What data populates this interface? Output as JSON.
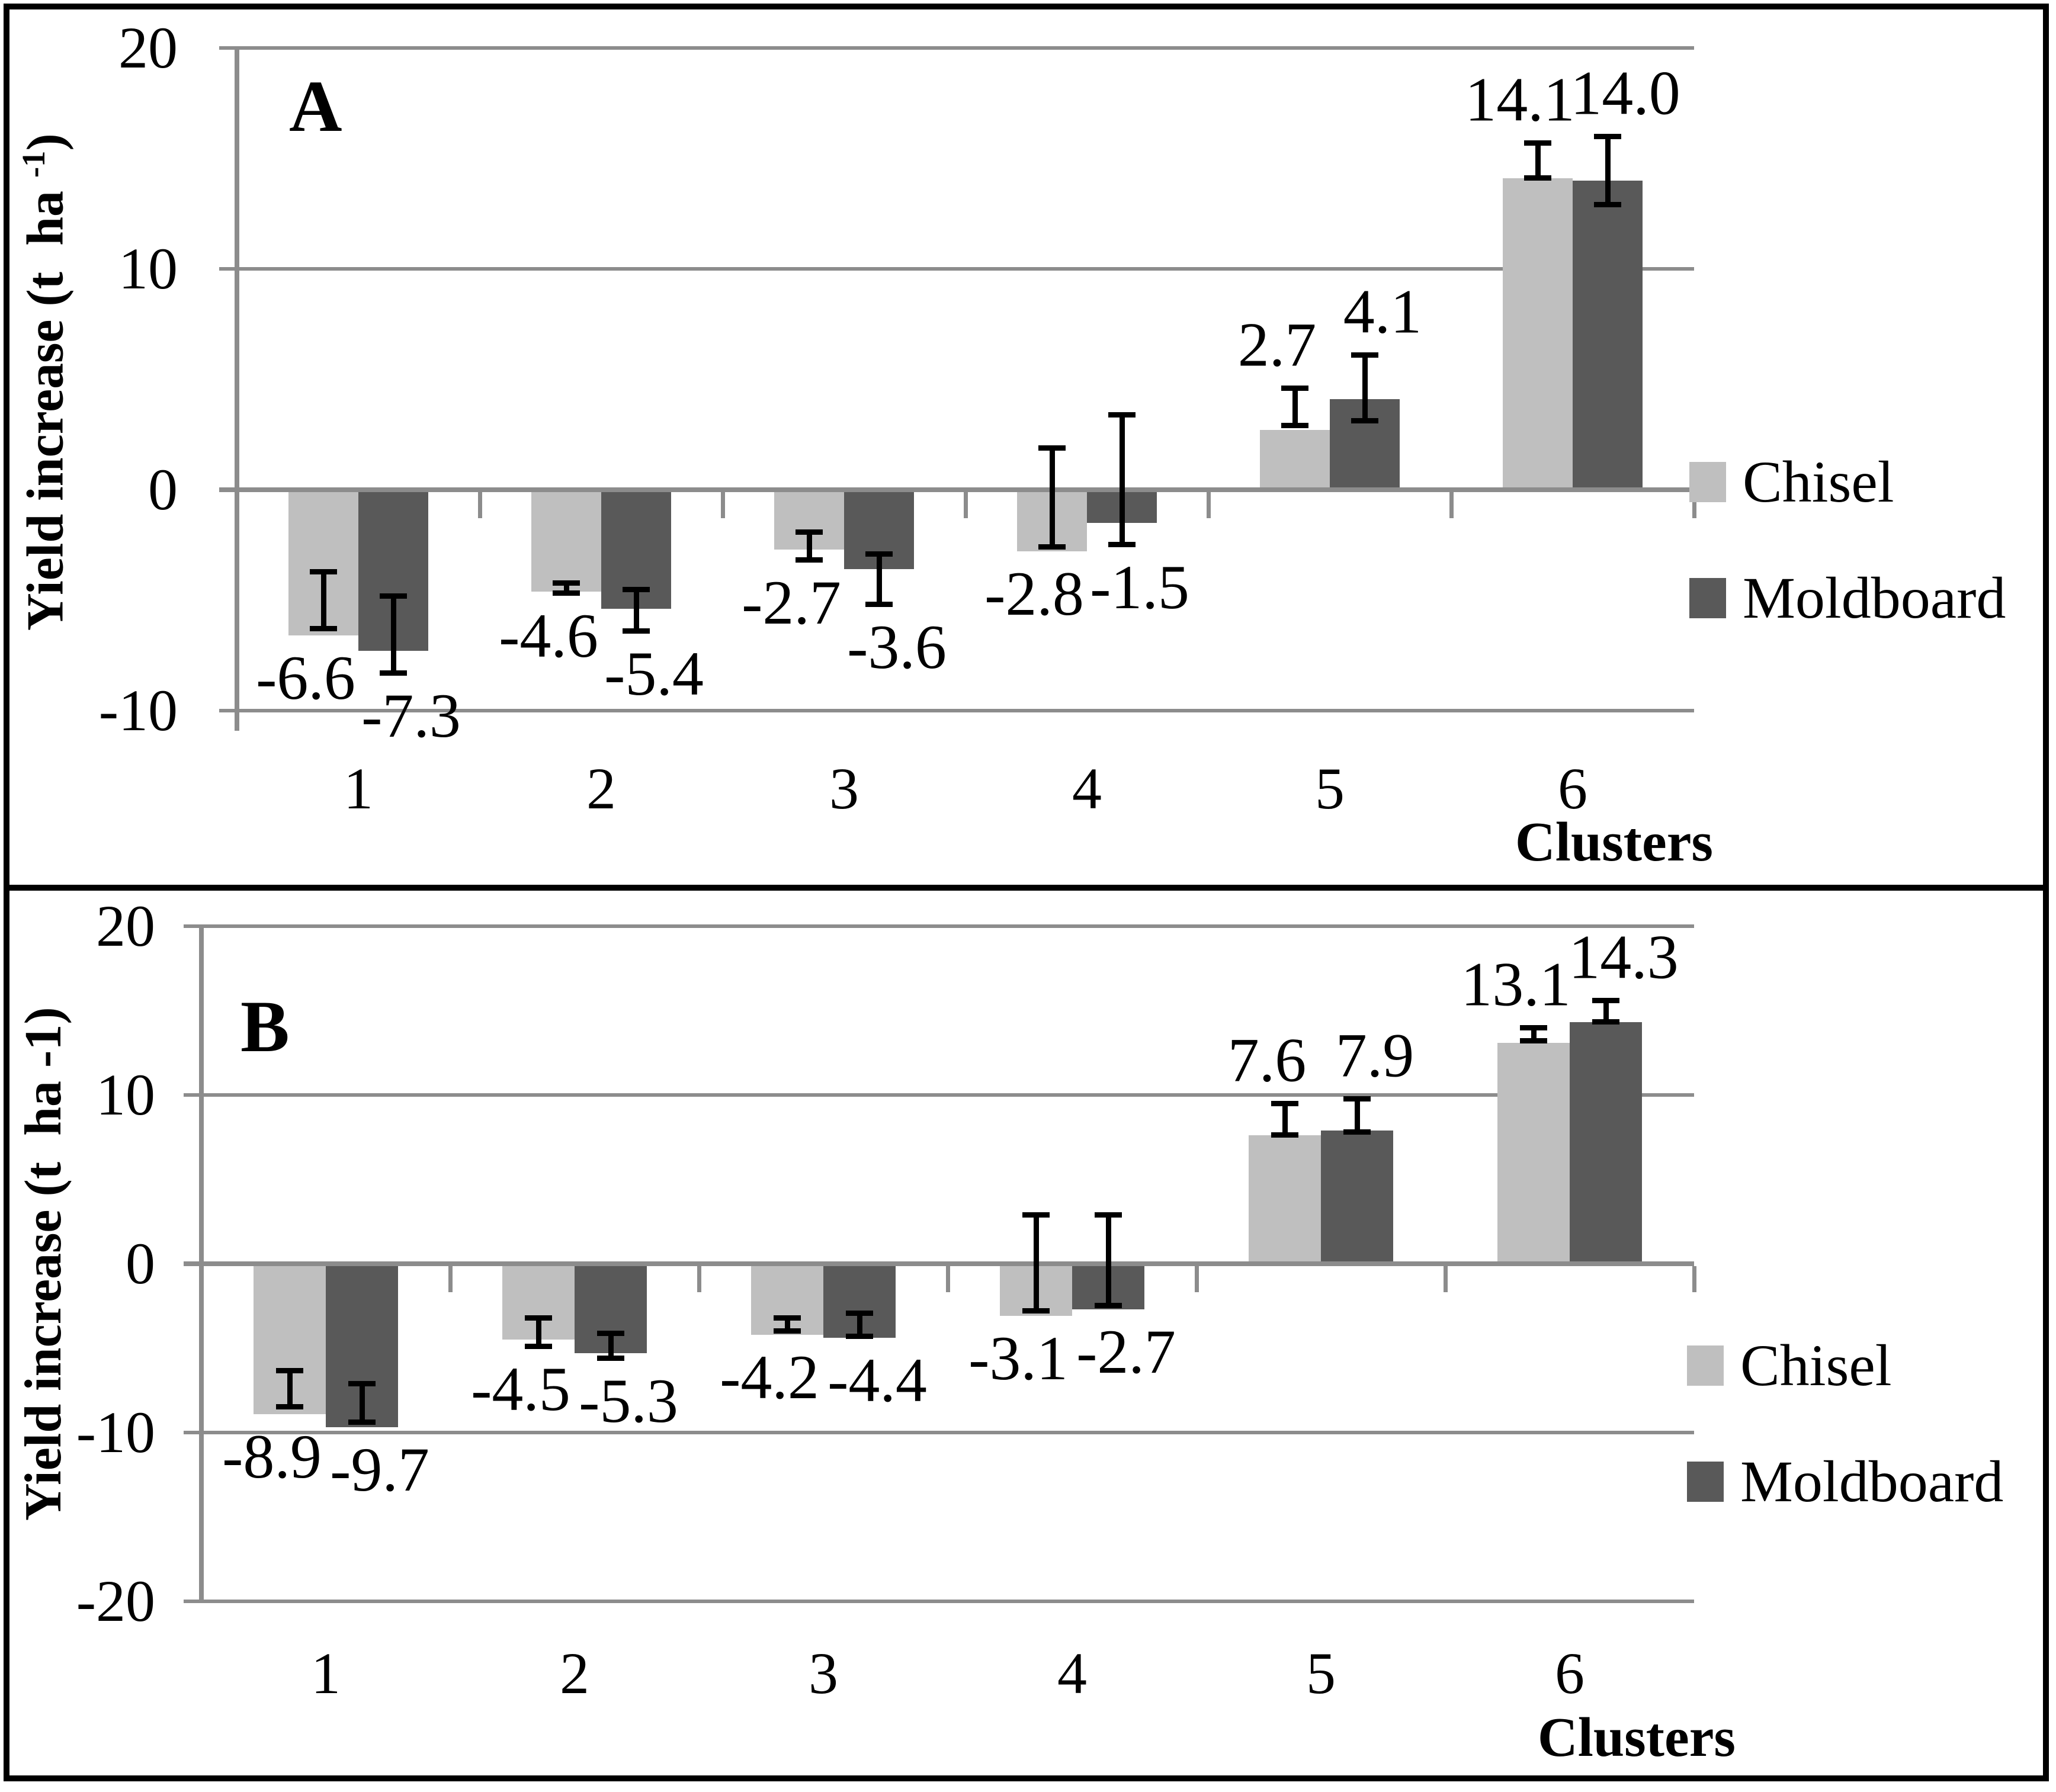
{
  "figure": {
    "background": "#ffffff",
    "panel_border_color": "#000000",
    "grid_color": "#8c8c8c",
    "error_bar_color": "#000000",
    "text_color": "#000000"
  },
  "legend": {
    "items": [
      {
        "label": "Chisel",
        "color": "#bfbfbf"
      },
      {
        "label": "Moldboard",
        "color": "#595959"
      }
    ]
  },
  "chart_data": [
    {
      "panel_label": "A",
      "type": "bar",
      "title": "",
      "xlabel": "Clusters",
      "ylabel": "Yield increase (t  ha -1)",
      "ylabel_parts": {
        "prefix": "Yield increase (t  ha ",
        "sup": "-1",
        "suffix": ")"
      },
      "categories": [
        "1",
        "2",
        "3",
        "4",
        "5",
        "6"
      ],
      "yticks": [
        "20",
        "10",
        "0",
        "-10"
      ],
      "ylim": [
        -10,
        20
      ],
      "grid": true,
      "legend_position": "right",
      "series": [
        {
          "name": "Chisel",
          "color": "#bfbfbf",
          "values": [
            -6.6,
            -4.6,
            -2.7,
            -2.8,
            2.7,
            14.1
          ],
          "labels": [
            "-6.6",
            "-4.6",
            "-2.7",
            "-2.8",
            "2.7",
            "14.1"
          ],
          "error_spans": [
            [
              -6.3,
              -3.7
            ],
            [
              -4.7,
              -4.2
            ],
            [
              -3.2,
              -1.9
            ],
            [
              -2.6,
              1.9
            ],
            [
              2.9,
              4.6
            ],
            [
              14.1,
              15.7
            ]
          ]
        },
        {
          "name": "Moldboard",
          "color": "#595959",
          "values": [
            -7.3,
            -5.4,
            -3.6,
            -1.5,
            4.1,
            14.0
          ],
          "labels": [
            "-7.3",
            "-5.4",
            "-3.6",
            "-1.5",
            "4.1",
            "14.0"
          ],
          "error_spans": [
            [
              -8.3,
              -4.8
            ],
            [
              -6.4,
              -4.5
            ],
            [
              -5.2,
              -2.9
            ],
            [
              -2.5,
              3.4
            ],
            [
              3.1,
              6.1
            ],
            [
              12.9,
              16.0
            ]
          ]
        }
      ]
    },
    {
      "panel_label": "B",
      "type": "bar",
      "title": "",
      "xlabel": "Clusters",
      "ylabel": "Yield increase (t  ha -1)",
      "categories": [
        "1",
        "2",
        "3",
        "4",
        "5",
        "6"
      ],
      "yticks": [
        "20",
        "10",
        "0",
        "-10",
        "-20"
      ],
      "ylim": [
        -20,
        20
      ],
      "grid": true,
      "legend_position": "right",
      "series": [
        {
          "name": "Chisel",
          "color": "#bfbfbf",
          "values": [
            -8.9,
            -4.5,
            -4.2,
            -3.1,
            7.6,
            13.1
          ],
          "labels": [
            "-8.9",
            "-4.5",
            "-4.2",
            "-3.1",
            "7.6",
            "13.1"
          ],
          "error_spans": [
            [
              -8.5,
              -6.3
            ],
            [
              -4.9,
              -3.2
            ],
            [
              -4.0,
              -3.2
            ],
            [
              -2.8,
              2.9
            ],
            [
              7.6,
              9.5
            ],
            [
              13.2,
              14.0
            ]
          ]
        },
        {
          "name": "Moldboard",
          "color": "#595959",
          "values": [
            -9.7,
            -5.3,
            -4.4,
            -2.7,
            7.9,
            14.3
          ],
          "labels": [
            "-9.7",
            "-5.3",
            "-4.4",
            "-2.7",
            "7.9",
            "14.3"
          ],
          "error_spans": [
            [
              -9.4,
              -7.1
            ],
            [
              -5.6,
              -4.1
            ],
            [
              -4.3,
              -2.9
            ],
            [
              -2.5,
              2.9
            ],
            [
              7.8,
              9.8
            ],
            [
              14.3,
              15.6
            ]
          ]
        }
      ]
    }
  ]
}
